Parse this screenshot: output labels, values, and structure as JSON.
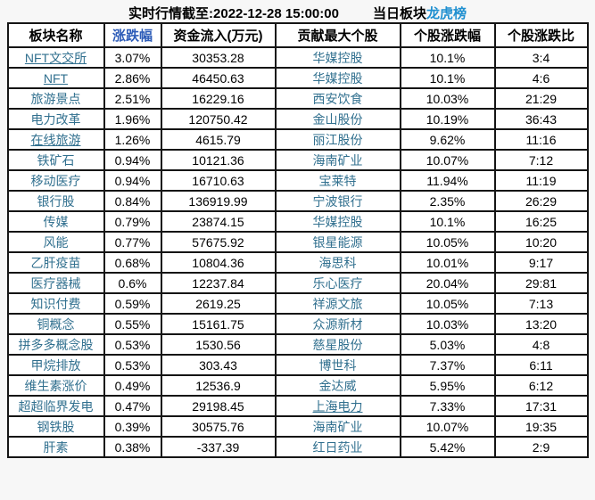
{
  "colors": {
    "link_teal": "#31708f",
    "header_blue": "#2d5cb8",
    "lhb_blue": "#2090d0",
    "border_black": "#151515",
    "page_bg": "#f7f7f7",
    "cell_bg": "#ffffff"
  },
  "header": {
    "snapshot_label": "实时行情截至:2022-12-28 15:00:00",
    "daily_sector_label": "当日板块",
    "dragon_tiger_label": "龙虎榜"
  },
  "table": {
    "headers": [
      "板块名称",
      "涨跌幅",
      "资金流入(万元)",
      "贡献最大个股",
      "个股涨跌幅",
      "个股涨跌比"
    ],
    "rows": [
      {
        "sector": "NFT文交所",
        "sector_underlined": true,
        "change": "3.07%",
        "inflow": "30353.28",
        "stock": "华媒控股",
        "stock_underlined": false,
        "stock_change": "10.1%",
        "ratio": "3:4"
      },
      {
        "sector": "NFT",
        "sector_underlined": true,
        "change": "2.86%",
        "inflow": "46450.63",
        "stock": "华媒控股",
        "stock_underlined": false,
        "stock_change": "10.1%",
        "ratio": "4:6"
      },
      {
        "sector": "旅游景点",
        "sector_underlined": false,
        "change": "2.51%",
        "inflow": "16229.16",
        "stock": "西安饮食",
        "stock_underlined": false,
        "stock_change": "10.03%",
        "ratio": "21:29"
      },
      {
        "sector": "电力改革",
        "sector_underlined": false,
        "change": "1.96%",
        "inflow": "120750.42",
        "stock": "金山股份",
        "stock_underlined": false,
        "stock_change": "10.19%",
        "ratio": "36:43"
      },
      {
        "sector": "在线旅游",
        "sector_underlined": true,
        "change": "1.26%",
        "inflow": "4615.79",
        "stock": "丽江股份",
        "stock_underlined": false,
        "stock_change": "9.62%",
        "ratio": "11:16"
      },
      {
        "sector": "铁矿石",
        "sector_underlined": false,
        "change": "0.94%",
        "inflow": "10121.36",
        "stock": "海南矿业",
        "stock_underlined": false,
        "stock_change": "10.07%",
        "ratio": "7:12"
      },
      {
        "sector": "移动医疗",
        "sector_underlined": false,
        "change": "0.94%",
        "inflow": "16710.63",
        "stock": "宝莱特",
        "stock_underlined": false,
        "stock_change": "11.94%",
        "ratio": "11:19"
      },
      {
        "sector": "银行股",
        "sector_underlined": false,
        "change": "0.84%",
        "inflow": "136919.99",
        "stock": "宁波银行",
        "stock_underlined": false,
        "stock_change": "2.35%",
        "ratio": "26:29"
      },
      {
        "sector": "传媒",
        "sector_underlined": false,
        "change": "0.79%",
        "inflow": "23874.15",
        "stock": "华媒控股",
        "stock_underlined": false,
        "stock_change": "10.1%",
        "ratio": "16:25"
      },
      {
        "sector": "风能",
        "sector_underlined": false,
        "change": "0.77%",
        "inflow": "57675.92",
        "stock": "银星能源",
        "stock_underlined": false,
        "stock_change": "10.05%",
        "ratio": "10:20"
      },
      {
        "sector": "乙肝疫苗",
        "sector_underlined": false,
        "change": "0.68%",
        "inflow": "10804.36",
        "stock": "海思科",
        "stock_underlined": false,
        "stock_change": "10.01%",
        "ratio": "9:17"
      },
      {
        "sector": "医疗器械",
        "sector_underlined": false,
        "change": "0.6%",
        "inflow": "12237.84",
        "stock": "乐心医疗",
        "stock_underlined": false,
        "stock_change": "20.04%",
        "ratio": "29:81"
      },
      {
        "sector": "知识付费",
        "sector_underlined": false,
        "change": "0.59%",
        "inflow": "2619.25",
        "stock": "祥源文旅",
        "stock_underlined": false,
        "stock_change": "10.05%",
        "ratio": "7:13"
      },
      {
        "sector": "铜概念",
        "sector_underlined": false,
        "change": "0.55%",
        "inflow": "15161.75",
        "stock": "众源新材",
        "stock_underlined": false,
        "stock_change": "10.03%",
        "ratio": "13:20"
      },
      {
        "sector": "拼多多概念股",
        "sector_underlined": false,
        "change": "0.53%",
        "inflow": "1530.56",
        "stock": "慈星股份",
        "stock_underlined": false,
        "stock_change": "5.03%",
        "ratio": "4:8"
      },
      {
        "sector": "甲烷排放",
        "sector_underlined": false,
        "change": "0.53%",
        "inflow": "303.43",
        "stock": "博世科",
        "stock_underlined": false,
        "stock_change": "7.37%",
        "ratio": "6:11"
      },
      {
        "sector": "维生素涨价",
        "sector_underlined": false,
        "change": "0.49%",
        "inflow": "12536.9",
        "stock": "金达威",
        "stock_underlined": false,
        "stock_change": "5.95%",
        "ratio": "6:12"
      },
      {
        "sector": "超超临界发电",
        "sector_underlined": false,
        "change": "0.47%",
        "inflow": "29198.45",
        "stock": "上海电力",
        "stock_underlined": true,
        "stock_change": "7.33%",
        "ratio": "17:31"
      },
      {
        "sector": "钢铁股",
        "sector_underlined": false,
        "change": "0.39%",
        "inflow": "30575.76",
        "stock": "海南矿业",
        "stock_underlined": false,
        "stock_change": "10.07%",
        "ratio": "19:35"
      },
      {
        "sector": "肝素",
        "sector_underlined": false,
        "change": "0.38%",
        "inflow": "-337.39",
        "stock": "红日药业",
        "stock_underlined": false,
        "stock_change": "5.42%",
        "ratio": "2:9"
      }
    ]
  }
}
